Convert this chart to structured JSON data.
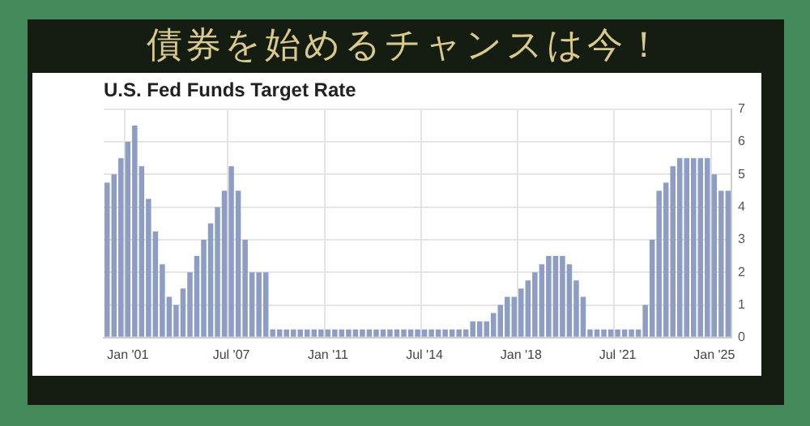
{
  "chart_data": {
    "type": "bar",
    "title": "債券を始めるチャンスは今！",
    "subtitle": "U.S. Fed Funds Target Rate",
    "categories": [
      null,
      null,
      null,
      "Jan '01",
      null,
      null,
      null,
      null,
      null,
      null,
      null,
      null,
      null,
      null,
      null,
      null,
      null,
      null,
      "Jul '07",
      null,
      null,
      null,
      null,
      null,
      null,
      null,
      null,
      null,
      null,
      null,
      null,
      null,
      "Jan '11",
      null,
      null,
      null,
      null,
      null,
      null,
      null,
      null,
      null,
      null,
      null,
      null,
      null,
      "Jul '14",
      null,
      null,
      null,
      null,
      null,
      null,
      null,
      null,
      null,
      null,
      null,
      null,
      null,
      "Jan '18",
      null,
      null,
      null,
      null,
      null,
      null,
      null,
      null,
      null,
      null,
      null,
      null,
      null,
      "Jul '21",
      null,
      null,
      null,
      null,
      null,
      null,
      null,
      null,
      null,
      null,
      null,
      null,
      null,
      "Jan '25",
      null,
      null
    ],
    "values": [
      4.75,
      5.0,
      5.5,
      6.0,
      6.5,
      5.25,
      4.25,
      3.25,
      2.25,
      1.25,
      1.0,
      1.5,
      2.0,
      2.5,
      3.0,
      3.5,
      4.0,
      4.5,
      5.25,
      4.5,
      3.0,
      2.0,
      2.0,
      2.0,
      0.25,
      0.25,
      0.25,
      0.25,
      0.25,
      0.25,
      0.25,
      0.25,
      0.25,
      0.25,
      0.25,
      0.25,
      0.25,
      0.25,
      0.25,
      0.25,
      0.25,
      0.25,
      0.25,
      0.25,
      0.25,
      0.25,
      0.25,
      0.25,
      0.25,
      0.25,
      0.25,
      0.25,
      0.25,
      0.5,
      0.5,
      0.5,
      0.75,
      1.0,
      1.25,
      1.25,
      1.5,
      1.75,
      2.0,
      2.25,
      2.5,
      2.5,
      2.5,
      2.25,
      1.75,
      1.25,
      0.25,
      0.25,
      0.25,
      0.25,
      0.25,
      0.25,
      0.25,
      0.25,
      1.0,
      3.0,
      4.5,
      4.75,
      5.25,
      5.5,
      5.5,
      5.5,
      5.5,
      5.5,
      5.0,
      4.5,
      4.5
    ],
    "color": "#8e9dc2",
    "ylim": [
      0,
      7
    ],
    "yticks": [
      0,
      1,
      2,
      3,
      4,
      5,
      6,
      7
    ],
    "grid": true,
    "legend": false
  }
}
